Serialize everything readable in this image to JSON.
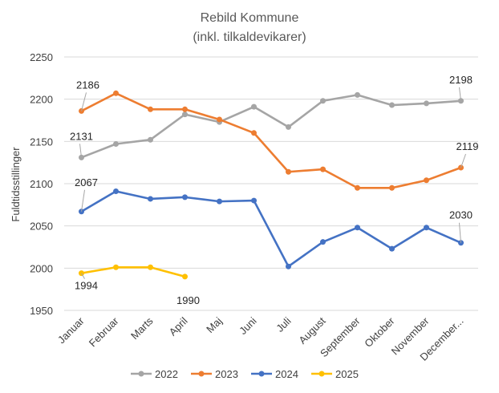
{
  "chart_data": {
    "type": "line",
    "title": "Rebild Kommune",
    "subtitle": "(inkl. tilkaldevikarer)",
    "xlabel": "",
    "ylabel": "Fuldtidsstillinger",
    "ylim": [
      1950,
      2250
    ],
    "yticks": [
      1950,
      2000,
      2050,
      2100,
      2150,
      2200,
      2250
    ],
    "grid": true,
    "legend_position": "bottom",
    "categories": [
      "Januar",
      "Februar",
      "Marts",
      "April",
      "Maj",
      "Juni",
      "Juli",
      "August",
      "September",
      "Oktober",
      "November",
      "December..."
    ],
    "series": [
      {
        "name": "2022",
        "color": "#a5a5a5",
        "values": [
          2131,
          2147,
          2152,
          2182,
          2173,
          2191,
          2167,
          2198,
          2205,
          2193,
          2195,
          2198
        ],
        "data_labels": [
          {
            "index": 0,
            "text": "2131"
          },
          {
            "index": 11,
            "text": "2198"
          }
        ]
      },
      {
        "name": "2023",
        "color": "#ed7d31",
        "values": [
          2186,
          2207,
          2188,
          2188,
          2176,
          2160,
          2114,
          2117,
          2095,
          2095,
          2104,
          2119
        ],
        "data_labels": [
          {
            "index": 0,
            "text": "2186"
          },
          {
            "index": 11,
            "text": "2119"
          }
        ]
      },
      {
        "name": "2024",
        "color": "#4472c4",
        "values": [
          2067,
          2091,
          2082,
          2084,
          2079,
          2080,
          2002,
          2031,
          2048,
          2023,
          2048,
          2030
        ],
        "data_labels": [
          {
            "index": 0,
            "text": "2067"
          },
          {
            "index": 11,
            "text": "2030"
          }
        ]
      },
      {
        "name": "2025",
        "color": "#ffc000",
        "values": [
          1994,
          2001,
          2001,
          1990,
          null,
          null,
          null,
          null,
          null,
          null,
          null,
          null
        ],
        "data_labels": [
          {
            "index": 0,
            "text": "1994"
          },
          {
            "index": 3,
            "text": "1990"
          }
        ]
      }
    ]
  }
}
